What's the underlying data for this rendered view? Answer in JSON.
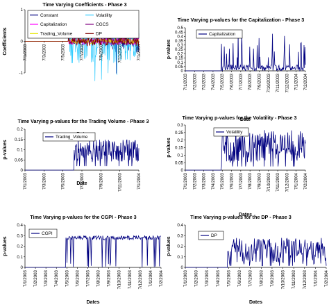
{
  "chart_data": [
    {
      "id": "coef",
      "type": "line",
      "title": "Time Varying Coefficients - Phase 3",
      "xlabel": "Date",
      "ylabel": "Coefficients",
      "ylim": [
        -1,
        1
      ],
      "yticks": [
        "1",
        "0",
        "-1"
      ],
      "xticks": [
        "7/1/2003",
        "7/3/2003",
        "7/5/2003",
        "7/7/2003",
        "7/9/2003",
        "7/11/2003",
        "7/1/2004"
      ],
      "legend_position": "top",
      "grid": false,
      "series": [
        {
          "name": "Constant",
          "color": "#000080",
          "kind": "coef-dense",
          "start": 0.72,
          "amp": 0.35,
          "values": []
        },
        {
          "name": "Volatility",
          "color": "#33CCFF",
          "kind": "coef-dense",
          "start": 0.38,
          "amp": 0.7,
          "values": []
        },
        {
          "name": "Capitalization",
          "color": "#FF00FF",
          "kind": "coef-small",
          "start": 0.38,
          "amp": 0.12,
          "values": []
        },
        {
          "name": "CGCS",
          "color": "#800080",
          "kind": "coef-small",
          "start": 0.38,
          "amp": 0.1,
          "values": []
        },
        {
          "name": "Trading_Volume",
          "color": "#E6E600",
          "kind": "coef-small",
          "start": 0.38,
          "amp": 0.08,
          "values": []
        },
        {
          "name": "DP",
          "color": "#800000",
          "kind": "coef-small",
          "start": 0.38,
          "amp": 0.15,
          "values": []
        }
      ]
    },
    {
      "id": "cap",
      "type": "line",
      "title": "Time Varying p-values for the Capitalization - Phase 3",
      "xlabel": "Date",
      "ylabel": "p-values",
      "ylim": [
        0,
        0.5
      ],
      "yticks": [
        "0.5",
        "0.45",
        "0.4",
        "0.35",
        "0.3",
        "0.25",
        "0.2",
        "0.15",
        "0.1",
        "0.05",
        "0"
      ],
      "xticks": [
        "7/1/2003",
        "7/2/2003",
        "7/3/2003",
        "7/4/2003",
        "7/5/2003",
        "7/6/2003",
        "7/7/2003",
        "7/8/2003",
        "7/9/2003",
        "7/10/2003",
        "7/11/2003",
        "7/12/2003",
        "7/1/2004",
        "7/2/2004"
      ],
      "legend_position": "top-left",
      "grid": false,
      "series": [
        {
          "name": "Capitalization",
          "color": "#000080",
          "kind": "pval-spiky",
          "start": 0.3,
          "low": 0.0,
          "high": 0.45,
          "values": []
        }
      ]
    },
    {
      "id": "tv",
      "type": "line",
      "title": "Time Varying p-values for the Trading Volume - Phase 3",
      "xlabel": "Date",
      "ylabel": "p-values",
      "ylim": [
        0,
        0.2
      ],
      "yticks": [
        "0.2",
        "0.15",
        "0.1",
        "0.05",
        "0"
      ],
      "xticks": [
        "7/1/2003",
        "7/3/2003",
        "7/5/2003",
        "7/7/2003",
        "7/9/2003",
        "7/11/2003",
        "7/1/2004"
      ],
      "legend_position": "top-left",
      "grid": false,
      "series": [
        {
          "name": "Trading_Volume",
          "color": "#000080",
          "kind": "pval-dense",
          "start": 0.43,
          "low": 0.04,
          "high": 0.15,
          "values": []
        }
      ]
    },
    {
      "id": "vol",
      "type": "line",
      "title": "Time Varying p-values for the Volatility - Phase 3",
      "xlabel": "Dates",
      "ylabel": "p-values",
      "ylim": [
        0,
        0.3
      ],
      "yticks": [
        "0.3",
        "0.25",
        "0.2",
        "0.15",
        "0.1",
        "0.05",
        "0"
      ],
      "xticks": [
        "7/1/2003",
        "7/2/2003",
        "7/3/2003",
        "7/4/2003",
        "7/5/2003",
        "7/6/2003",
        "7/7/2003",
        "7/8/2003",
        "7/9/2003",
        "7/10/2003",
        "7/11/2003",
        "7/12/2003",
        "7/1/2004",
        "7/2/2004"
      ],
      "legend_position": "top-left",
      "grid": false,
      "series": [
        {
          "name": "Volatility",
          "color": "#000080",
          "kind": "pval-dense",
          "start": 0.3,
          "low": 0.05,
          "high": 0.27,
          "values": []
        }
      ]
    },
    {
      "id": "cgpi",
      "type": "line",
      "title": "Time Varying p-values for the CGPI - Phase 3",
      "xlabel": "Dates",
      "ylabel": "p-values",
      "ylim": [
        0,
        0.4
      ],
      "yticks": [
        "0.4",
        "0.3",
        "0.2",
        "0.1",
        "0"
      ],
      "xticks": [
        "7/1/2003",
        "7/2/2003",
        "7/3/2003",
        "7/4/2003",
        "7/5/2003",
        "7/6/2003",
        "7/7/2003",
        "7/8/2003",
        "7/9/2003",
        "7/10/2003",
        "7/11/2003",
        "7/12/2003",
        "7/1/2004",
        "7/2/2004"
      ],
      "legend_position": "top-left",
      "grid": false,
      "series": [
        {
          "name": "CGPI",
          "color": "#000080",
          "kind": "pval-high",
          "start": 0.3,
          "low": 0.0,
          "high": 0.3,
          "values": []
        }
      ]
    },
    {
      "id": "dp",
      "type": "line",
      "title": "Time Varying p-values for the DP - Phase 3",
      "xlabel": "Dates",
      "ylabel": "p-values",
      "ylim": [
        0,
        0.4
      ],
      "yticks": [
        "0.4",
        "0.3",
        "0.2",
        "0.1",
        "0"
      ],
      "xticks": [
        "7/1/2003",
        "7/2/2003",
        "7/3/2003",
        "7/4/2003",
        "7/5/2003",
        "7/6/2003",
        "7/7/2003",
        "7/8/2003",
        "7/9/2003",
        "7/10/2003",
        "7/11/2003",
        "7/12/2003",
        "7/1/2004",
        "7/2/2004"
      ],
      "legend_position": "top-left",
      "grid": false,
      "series": [
        {
          "name": "DP",
          "color": "#000080",
          "kind": "pval-dense",
          "start": 0.3,
          "low": 0.03,
          "high": 0.28,
          "values": []
        }
      ]
    }
  ]
}
